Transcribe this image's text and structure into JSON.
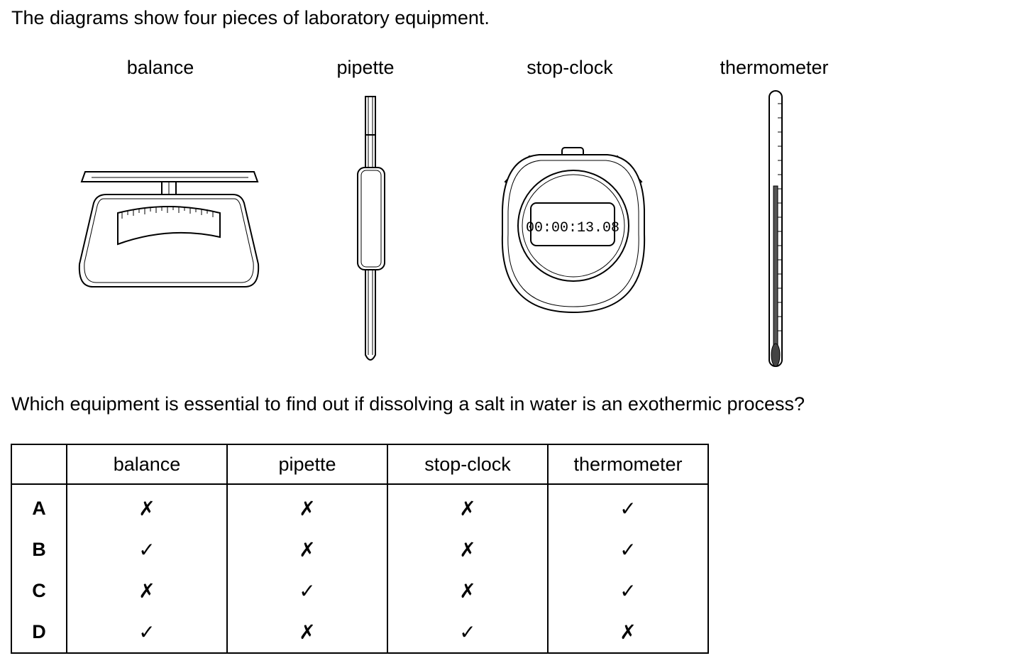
{
  "intro_text": "The diagrams show four pieces of laboratory equipment.",
  "equipment_labels": [
    "balance",
    "pipette",
    "stop-clock",
    "thermometer"
  ],
  "stopclock_display": "00:00:13.08",
  "question_text": "Which equipment is essential to find out if dissolving a salt in water is an exothermic process?",
  "table": {
    "headers": [
      "",
      "balance",
      "pipette",
      "stop-clock",
      "thermometer"
    ],
    "rows": [
      {
        "key": "A",
        "marks": [
          "✗",
          "✗",
          "✗",
          "✓"
        ]
      },
      {
        "key": "B",
        "marks": [
          "✓",
          "✗",
          "✗",
          "✓"
        ]
      },
      {
        "key": "C",
        "marks": [
          "✗",
          "✓",
          "✗",
          "✓"
        ]
      },
      {
        "key": "D",
        "marks": [
          "✓",
          "✗",
          "✓",
          "✗"
        ]
      }
    ]
  }
}
